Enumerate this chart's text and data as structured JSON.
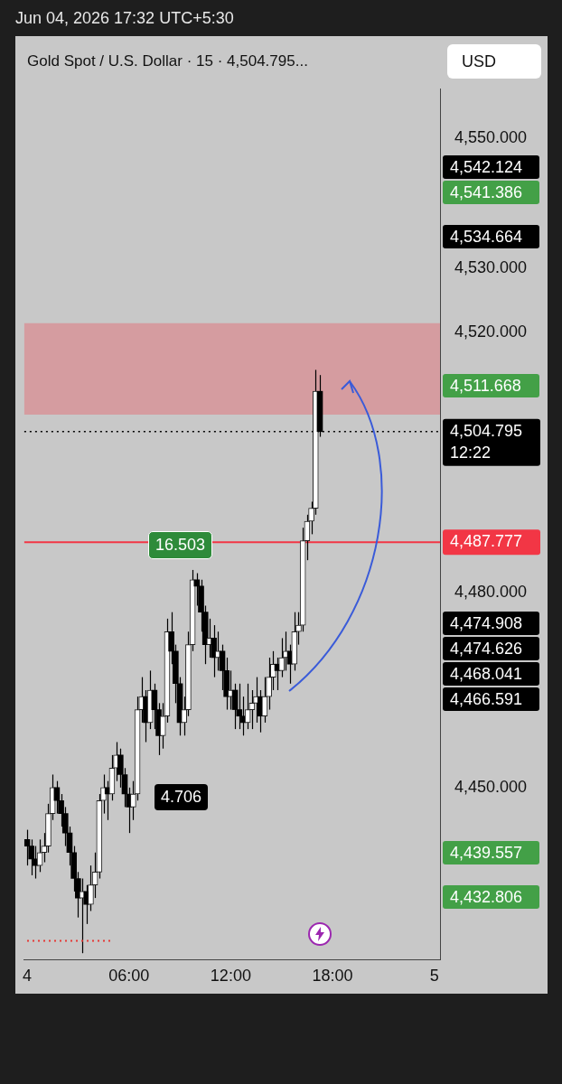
{
  "chart_data": {
    "type": "candlestick",
    "title": "Gold Spot / U.S. Dollar · 15 · 4,504.795...",
    "annotations": [
      "Jun 04, 2026 17:32 UTC+5:30",
      "USD",
      "4.706",
      "16.503",
      "4,542.124",
      "4,541.386",
      "4,534.664",
      "4,511.668",
      "4,474.908",
      "4,474.626",
      "4,468.041",
      "4,466.591",
      "4,439.557",
      "4,432.806"
    ],
    "x": [
      "2026-06-04T00:00",
      "2026-06-04T00:15",
      "2026-06-04T00:30",
      "2026-06-04T00:45",
      "2026-06-04T01:00",
      "2026-06-04T01:15",
      "2026-06-04T01:30",
      "2026-06-04T01:45",
      "2026-06-04T02:00",
      "2026-06-04T02:15",
      "2026-06-04T02:30",
      "2026-06-04T02:45",
      "2026-06-04T03:00",
      "2026-06-04T03:15",
      "2026-06-04T03:30",
      "2026-06-04T03:45",
      "2026-06-04T04:00",
      "2026-06-04T04:15",
      "2026-06-04T04:30",
      "2026-06-04T04:45",
      "2026-06-04T05:00",
      "2026-06-04T05:15",
      "2026-06-04T05:30",
      "2026-06-04T05:45",
      "2026-06-04T06:00",
      "2026-06-04T06:15",
      "2026-06-04T06:30",
      "2026-06-04T06:45",
      "2026-06-04T07:00",
      "2026-06-04T07:15",
      "2026-06-04T07:30",
      "2026-06-04T07:45",
      "2026-06-04T08:00",
      "2026-06-04T08:15",
      "2026-06-04T08:30",
      "2026-06-04T08:45",
      "2026-06-04T09:00",
      "2026-06-04T09:15",
      "2026-06-04T09:30",
      "2026-06-04T09:45",
      "2026-06-04T10:00",
      "2026-06-04T10:15",
      "2026-06-04T10:30",
      "2026-06-04T10:45",
      "2026-06-04T11:00",
      "2026-06-04T11:15",
      "2026-06-04T11:30",
      "2026-06-04T11:45",
      "2026-06-04T12:00",
      "2026-06-04T12:15",
      "2026-06-04T12:30",
      "2026-06-04T12:45",
      "2026-06-04T13:00",
      "2026-06-04T13:15",
      "2026-06-04T13:30",
      "2026-06-04T13:45",
      "2026-06-04T14:00",
      "2026-06-04T14:15",
      "2026-06-04T14:30",
      "2026-06-04T14:45",
      "2026-06-04T15:00",
      "2026-06-04T15:15",
      "2026-06-04T15:30",
      "2026-06-04T15:45",
      "2026-06-04T16:00",
      "2026-06-04T16:15",
      "2026-06-04T16:30",
      "2026-06-04T16:45",
      "2026-06-04T17:00",
      "2026-06-04T17:15"
    ],
    "ohlc": [
      [
        4442,
        4443.5,
        4438,
        4441
      ],
      [
        4441,
        4442,
        4436.5,
        4439
      ],
      [
        4439,
        4441,
        4436,
        4438
      ],
      [
        4438,
        4442,
        4437,
        4440
      ],
      [
        4440,
        4443,
        4438.5,
        4441
      ],
      [
        4441,
        4447.5,
        4440,
        4446
      ],
      [
        4446,
        4452,
        4445,
        4450
      ],
      [
        4450,
        4451,
        4446,
        4448
      ],
      [
        4448,
        4449,
        4444,
        4446
      ],
      [
        4446,
        4447,
        4441,
        4443
      ],
      [
        4443,
        4444,
        4438,
        4440
      ],
      [
        4440,
        4441,
        4434,
        4436
      ],
      [
        4436,
        4437,
        4430,
        4433
      ],
      [
        4433,
        4436,
        4424.5,
        4434
      ],
      [
        4434,
        4435,
        4429,
        4432
      ],
      [
        4432,
        4438,
        4431,
        4435
      ],
      [
        4435,
        4440,
        4433,
        4437
      ],
      [
        4437,
        4449,
        4436,
        4448
      ],
      [
        4448,
        4452,
        4446,
        4450
      ],
      [
        4450,
        4451,
        4445,
        4449
      ],
      [
        4449,
        4455,
        4448,
        4453
      ],
      [
        4453,
        4457,
        4451,
        4455
      ],
      [
        4455,
        4456,
        4450,
        4452
      ],
      [
        4452,
        4453,
        4447,
        4449
      ],
      [
        4449,
        4450,
        4443,
        4447
      ],
      [
        4447,
        4451,
        4445,
        4449
      ],
      [
        4449,
        4464,
        4448,
        4462
      ],
      [
        4462,
        4467,
        4460,
        4464
      ],
      [
        4464,
        4465,
        4457,
        4460
      ],
      [
        4460,
        4468,
        4459,
        4465
      ],
      [
        4465,
        4466,
        4459,
        4462
      ],
      [
        4462,
        4463,
        4455,
        4458
      ],
      [
        4458,
        4463,
        4456,
        4461
      ],
      [
        4461,
        4476,
        4460,
        4474
      ],
      [
        4474,
        4477,
        4469,
        4471
      ],
      [
        4471,
        4472,
        4463,
        4466
      ],
      [
        4466,
        4467,
        4458,
        4460
      ],
      [
        4460,
        4464,
        4458,
        4462
      ],
      [
        4462,
        4474,
        4461,
        4472
      ],
      [
        4472,
        4483.5,
        4471,
        4482
      ],
      [
        4482,
        4483,
        4478,
        4481
      ],
      [
        4481,
        4482,
        4474,
        4477
      ],
      [
        4477,
        4478,
        4469,
        4472
      ],
      [
        4472,
        4476,
        4470,
        4473
      ],
      [
        4473,
        4475,
        4467,
        4470
      ],
      [
        4470,
        4474,
        4468,
        4471
      ],
      [
        4471,
        4472,
        4465,
        4468
      ],
      [
        4468,
        4470,
        4462,
        4464
      ],
      [
        4464,
        4468,
        4462,
        4465
      ],
      [
        4465,
        4466,
        4459,
        4462
      ],
      [
        4462,
        4466,
        4459,
        4461
      ],
      [
        4461,
        4464,
        4458,
        4460
      ],
      [
        4460,
        4466,
        4459,
        4462
      ],
      [
        4462,
        4465,
        4459,
        4463
      ],
      [
        4463,
        4467,
        4460,
        4464
      ],
      [
        4464,
        4465,
        4458.5,
        4461
      ],
      [
        4461,
        4467,
        4460,
        4464
      ],
      [
        4464,
        4470,
        4462,
        4467
      ],
      [
        4467,
        4471,
        4465,
        4469
      ],
      [
        4469,
        4470,
        4465,
        4468
      ],
      [
        4468,
        4473,
        4467,
        4470
      ],
      [
        4470,
        4474,
        4468,
        4471
      ],
      [
        4471,
        4472,
        4466,
        4469
      ],
      [
        4469,
        4477,
        4468,
        4474
      ],
      [
        4474,
        4477,
        4472,
        4475
      ],
      [
        4475,
        4490,
        4474,
        4488
      ],
      [
        4488,
        4492,
        4485,
        4491
      ],
      [
        4491,
        4494,
        4489,
        4493
      ],
      [
        4493,
        4514.3,
        4492,
        4511
      ],
      [
        4511,
        4513.5,
        4504,
        4504.795
      ]
    ],
    "series": [
      {
        "type": "line",
        "x": [
          "2026-06-04T00:00",
          "2026-06-04T04:55"
        ],
        "values": [
          4426.4,
          4426.4
        ],
        "color": "#e53935",
        "line_style": "dotted"
      }
    ],
    "xlim": [
      "2026-06-03T23:50",
      "2026-06-05T00:20"
    ],
    "xticks": [
      {
        "value": "2026-06-04T00:00",
        "label": "4"
      },
      {
        "value": "2026-06-04T06:00",
        "label": "06:00"
      },
      {
        "value": "2026-06-04T12:00",
        "label": "12:00"
      },
      {
        "value": "2026-06-04T18:00",
        "label": "18:00"
      },
      {
        "value": "2026-06-05T00:00",
        "label": "5"
      }
    ],
    "ylim": [
      4423.5,
      4557.5
    ],
    "yticks": [
      {
        "value": 4450,
        "label": "4,450.000"
      },
      {
        "value": 4480,
        "label": "4,480.000"
      },
      {
        "value": 4520,
        "label": "4,520.000"
      },
      {
        "value": 4530,
        "label": "4,530.000"
      },
      {
        "value": 4550,
        "label": "4,550.000"
      }
    ],
    "ref_lines": [
      {
        "axis": "y",
        "value": 4504.795,
        "label": "4,504.795\n12:22",
        "color": "#000000",
        "line_style": "dotted"
      },
      {
        "axis": "y",
        "value": 4487.777,
        "label": "4,487.777",
        "color": "#f23645",
        "line_style": "solid"
      }
    ],
    "bands": [
      {
        "axis": "y",
        "from": 4507.4,
        "to": 4521.5,
        "color": "#d59ca0"
      }
    ]
  }
}
